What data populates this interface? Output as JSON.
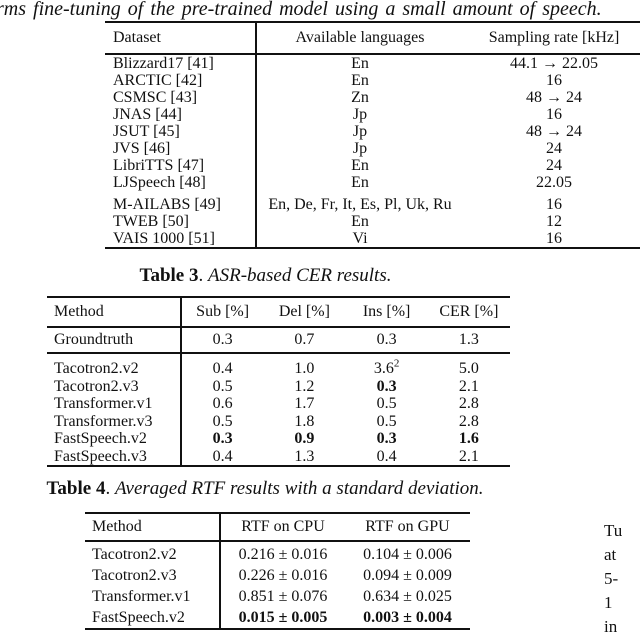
{
  "page": {
    "top_text": "rms fine-tuning of the pre-trained model using a small amount of speech."
  },
  "datasets_table": {
    "headers": [
      "Dataset",
      "Available languages",
      "Sampling rate [kHz]"
    ],
    "rows": [
      {
        "dataset": "Blizzard17 [41]",
        "languages": "En",
        "rate": "44.1 → 22.05"
      },
      {
        "dataset": "ARCTIC [42]",
        "languages": "En",
        "rate": "16"
      },
      {
        "dataset": "CSMSC [43]",
        "languages": "Zn",
        "rate": "48 → 24"
      },
      {
        "dataset": "JNAS [44]",
        "languages": "Jp",
        "rate": "16"
      },
      {
        "dataset": "JSUT [45]",
        "languages": "Jp",
        "rate": "48 → 24"
      },
      {
        "dataset": "JVS [46]",
        "languages": "Jp",
        "rate": "24"
      },
      {
        "dataset": "LibriTTS [47]",
        "languages": "En",
        "rate": "24"
      },
      {
        "dataset": "LJSpeech [48]",
        "languages": "En",
        "rate": "22.05"
      },
      {
        "dataset": "M-AILABS [49]",
        "languages": "En, De, Fr, It, Es, Pl, Uk, Ru",
        "rate": "16"
      },
      {
        "dataset": "TWEB [50]",
        "languages": "En",
        "rate": "12"
      },
      {
        "dataset": "VAIS 1000 [51]",
        "languages": "Vi",
        "rate": "16"
      }
    ]
  },
  "table3": {
    "caption": {
      "label": "Table 3",
      "sep": ". ",
      "text": "ASR-based CER results."
    },
    "headers": [
      "Method",
      "Sub [%]",
      "Del [%]",
      "Ins [%]",
      "CER [%]"
    ],
    "groundtruth": {
      "method": "Groundtruth",
      "sub": "0.3",
      "del": "0.7",
      "ins": "0.3",
      "cer": "1.3"
    },
    "rows": [
      {
        "method": "Tacotron2.v2",
        "sub": "0.4",
        "del": "1.0",
        "ins": "3.6",
        "ins_sup": "2",
        "cer": "5.0"
      },
      {
        "method": "Tacotron2.v3",
        "sub": "0.5",
        "del": "1.2",
        "ins": "0.3",
        "cer": "2.1"
      },
      {
        "method": "Transformer.v1",
        "sub": "0.6",
        "del": "1.7",
        "ins": "0.5",
        "cer": "2.8"
      },
      {
        "method": "Transformer.v3",
        "sub": "0.5",
        "del": "1.8",
        "ins": "0.5",
        "cer": "2.8"
      },
      {
        "method": "FastSpeech.v2",
        "sub": "0.3",
        "del": "0.9",
        "ins": "0.3",
        "cer": "1.6"
      },
      {
        "method": "FastSpeech.v3",
        "sub": "0.4",
        "del": "1.3",
        "ins": "0.4",
        "cer": "2.1"
      }
    ]
  },
  "table4": {
    "caption": {
      "label": "Table 4",
      "sep": ". ",
      "text": "Averaged RTF results with a standard deviation."
    },
    "headers": [
      "Method",
      "RTF on CPU",
      "RTF on GPU"
    ],
    "rows": [
      {
        "method": "Tacotron2.v2",
        "cpu": "0.216 ± 0.016",
        "gpu": "0.104 ± 0.006"
      },
      {
        "method": "Tacotron2.v3",
        "cpu": "0.226 ± 0.016",
        "gpu": "0.094 ± 0.009"
      },
      {
        "method": "Transformer.v1",
        "cpu": "0.851 ± 0.076",
        "gpu": "0.634 ± 0.025"
      },
      {
        "method": "FastSpeech.v2",
        "cpu": "0.015 ± 0.005",
        "gpu": "0.003 ± 0.004"
      }
    ]
  },
  "right_column_fragments": [
    "Tu",
    "at",
    "5-",
    "1",
    "in"
  ]
}
